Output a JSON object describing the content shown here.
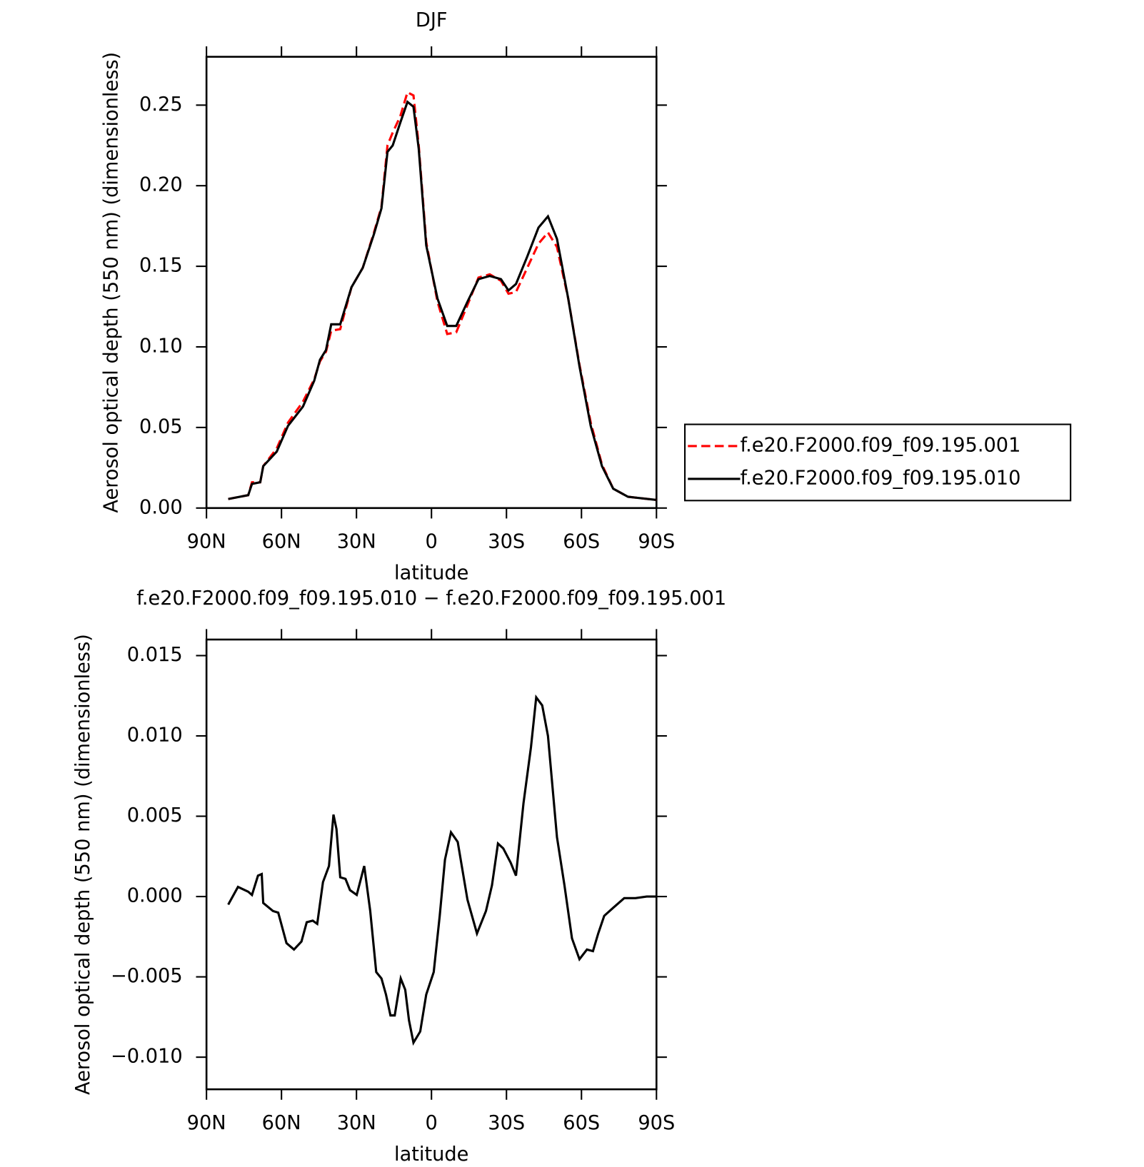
{
  "chart_data": [
    {
      "type": "line",
      "title": "DJF",
      "xlabel": "latitude",
      "ylabel": "Aerosol optical depth (550 nm) (dimensionless)",
      "x": [
        81.3,
        73.3,
        71.8,
        68.5,
        67.3,
        61.9,
        57.4,
        51.4,
        46.9,
        44.6,
        42.2,
        40.1,
        36.5,
        32,
        27.5,
        23,
        20,
        17.6,
        15.5,
        12.5,
        9.6,
        7.2,
        5.1,
        2.1,
        -2.4,
        -6.3,
        -9.9,
        -14.4,
        -18.8,
        -23.3,
        -27.8,
        -30.8,
        -33.8,
        -38.3,
        -42.8,
        -46.6,
        -50.2,
        -54.7,
        -59.2,
        -63.7,
        -68.2,
        -72.7,
        -78.6,
        -90
      ],
      "series": [
        {
          "name": "f.e20.F2000.f09_f09.195.001",
          "color": "#ff0000",
          "dash": "dashed",
          "values": [
            0.0056,
            0.008,
            0.016,
            0.016,
            0.026,
            0.037,
            0.053,
            0.066,
            0.08,
            0.091,
            0.097,
            0.11,
            0.111,
            0.137,
            0.149,
            0.171,
            0.187,
            0.225,
            0.233,
            0.243,
            0.258,
            0.256,
            0.225,
            0.165,
            0.128,
            0.108,
            0.109,
            0.126,
            0.143,
            0.145,
            0.141,
            0.133,
            0.134,
            0.149,
            0.164,
            0.171,
            0.162,
            0.13,
            0.089,
            0.053,
            0.027,
            0.012,
            0.007,
            0.005
          ]
        },
        {
          "name": "f.e20.F2000.f09_f09.195.010",
          "color": "#000000",
          "dash": "solid",
          "values": [
            0.0056,
            0.008,
            0.015,
            0.016,
            0.026,
            0.035,
            0.051,
            0.063,
            0.079,
            0.092,
            0.098,
            0.114,
            0.114,
            0.137,
            0.149,
            0.17,
            0.186,
            0.221,
            0.225,
            0.239,
            0.252,
            0.249,
            0.223,
            0.163,
            0.13,
            0.113,
            0.113,
            0.128,
            0.142,
            0.144,
            0.142,
            0.135,
            0.139,
            0.156,
            0.174,
            0.181,
            0.167,
            0.13,
            0.088,
            0.051,
            0.026,
            0.012,
            0.007,
            0.005
          ]
        }
      ],
      "xlim": [
        90,
        -90
      ],
      "xticks": [
        {
          "value": 90,
          "label": "90N"
        },
        {
          "value": 60,
          "label": "60N"
        },
        {
          "value": 30,
          "label": "30N"
        },
        0,
        {
          "value": -30,
          "label": "30S"
        },
        {
          "value": -60,
          "label": "60S"
        },
        {
          "value": -90,
          "label": "90S"
        }
      ],
      "ylim": [
        0,
        0.28
      ],
      "yticks": [
        {
          "value": 0,
          "label": "0.00"
        },
        0.05,
        {
          "value": 0.1,
          "label": "0.10"
        },
        0.15,
        {
          "value": 0.2,
          "label": "0.20"
        },
        0.25
      ],
      "legend": "right"
    },
    {
      "type": "line",
      "title": "f.e20.F2000.f09_f09.195.010 − f.e20.F2000.f09_f09.195.001",
      "xlabel": "latitude",
      "ylabel": "Aerosol optical depth (550 nm) (dimensionless)",
      "x": [
        81.3,
        77.4,
        73.3,
        71.8,
        69.4,
        67.9,
        67.3,
        63.4,
        61.3,
        58,
        55,
        52,
        49.9,
        47.5,
        45.7,
        43.4,
        41,
        39.2,
        38,
        36.5,
        34.4,
        32.6,
        29.9,
        26.9,
        24.5,
        22.1,
        20,
        18.2,
        16.4,
        14.7,
        12.3,
        10.5,
        9,
        7.2,
        4.5,
        2.1,
        -0.9,
        -3.3,
        -5.4,
        -7.8,
        -10.5,
        -14.4,
        -18.2,
        -21.8,
        -24.2,
        -26.6,
        -28.7,
        -31.7,
        -33.8,
        -36.8,
        -39.8,
        -41.9,
        -44.3,
        -46.6,
        -50.2,
        -53.2,
        -56.2,
        -59.2,
        -62.2,
        -64.6,
        -66.7,
        -69.1,
        -72.7,
        -77.1,
        -81.6,
        -86.1,
        -90
      ],
      "series": [
        {
          "color": "#000000",
          "values": [
            -0.0005,
            0.0006,
            0.0003,
            0.0001,
            0.0013,
            0.0014,
            -0.0004,
            -0.0009,
            -0.001,
            -0.0029,
            -0.0033,
            -0.0028,
            -0.0016,
            -0.0015,
            -0.0017,
            0.0009,
            0.0019,
            0.0051,
            0.0042,
            0.0012,
            0.0011,
            0.0004,
            0.0001,
            0.0019,
            -0.0009,
            -0.0047,
            -0.0051,
            -0.0061,
            -0.0074,
            -0.0074,
            -0.0051,
            -0.0058,
            -0.0077,
            -0.0091,
            -0.0084,
            -0.0061,
            -0.0047,
            -0.0012,
            0.0023,
            0.004,
            0.0034,
            -0.0002,
            -0.0023,
            -0.0009,
            0.0007,
            0.0033,
            0.003,
            0.0021,
            0.0013,
            0.0058,
            0.0093,
            0.0124,
            0.0119,
            0.01,
            0.0037,
            0.0007,
            -0.0026,
            -0.0039,
            -0.0033,
            -0.0034,
            -0.0023,
            -0.0012,
            -0.0007,
            -0.0001,
            -0.0001,
            0,
            0
          ]
        }
      ],
      "xlim": [
        90,
        -90
      ],
      "xticks": [
        {
          "value": 90,
          "label": "90N"
        },
        {
          "value": 60,
          "label": "60N"
        },
        {
          "value": 30,
          "label": "30N"
        },
        0,
        {
          "value": -30,
          "label": "30S"
        },
        {
          "value": -60,
          "label": "60S"
        },
        {
          "value": -90,
          "label": "90S"
        }
      ],
      "ylim": [
        -0.012,
        0.016
      ],
      "yticks": [
        {
          "value": -0.01,
          "label": "−0.010"
        },
        {
          "value": -0.005,
          "label": "−0.005"
        },
        {
          "value": 0,
          "label": "0.000"
        },
        0.005,
        {
          "value": 0.01,
          "label": "0.010"
        },
        0.015
      ]
    }
  ]
}
